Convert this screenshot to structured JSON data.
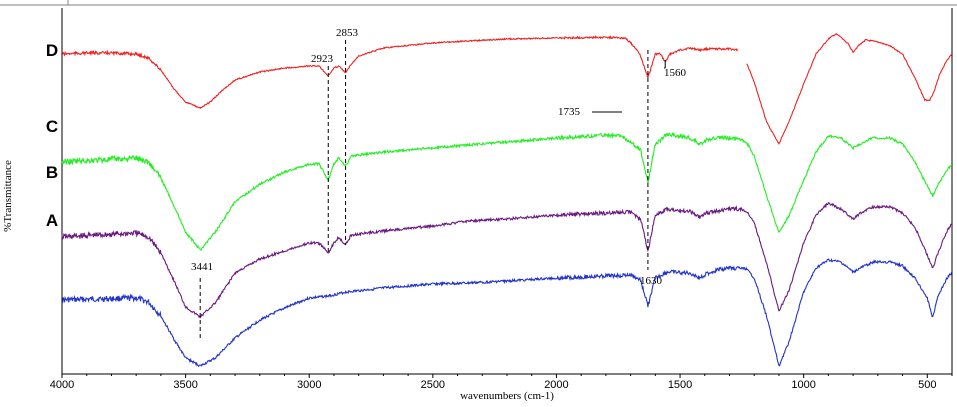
{
  "chart_data": {
    "type": "line",
    "title": "",
    "xlabel": "wavenumbers (cm-1)",
    "ylabel": "%Transmittance",
    "xlim": [
      4000,
      400
    ],
    "x_reversed": true,
    "x_ticks": [
      4000,
      3500,
      3000,
      2500,
      2000,
      1500,
      1000,
      500
    ],
    "y_ticks_shown": false,
    "grid": false,
    "x_gap": [
      1265,
      1232
    ],
    "series": [
      {
        "name": "A",
        "color": "#2233cc",
        "noise": 0.6,
        "points": [
          [
            4000,
            64
          ],
          [
            3850,
            63.5
          ],
          [
            3700,
            63
          ],
          [
            3650,
            65
          ],
          [
            3600,
            72
          ],
          [
            3550,
            83
          ],
          [
            3500,
            93
          ],
          [
            3441,
            97
          ],
          [
            3380,
            93
          ],
          [
            3300,
            83
          ],
          [
            3200,
            74
          ],
          [
            3100,
            68
          ],
          [
            3000,
            63
          ],
          [
            2923,
            62
          ],
          [
            2850,
            60
          ],
          [
            2700,
            58
          ],
          [
            2500,
            56
          ],
          [
            2360,
            55.5
          ],
          [
            2200,
            54.5
          ],
          [
            2000,
            53
          ],
          [
            1800,
            52
          ],
          [
            1700,
            51.5
          ],
          [
            1660,
            54
          ],
          [
            1630,
            67
          ],
          [
            1600,
            53
          ],
          [
            1550,
            50
          ],
          [
            1460,
            50.5
          ],
          [
            1420,
            53
          ],
          [
            1395,
            51
          ],
          [
            1350,
            49
          ],
          [
            1300,
            48
          ],
          [
            1265,
            48
          ],
          [
            1232,
            48.5
          ],
          [
            1200,
            53
          ],
          [
            1150,
            72
          ],
          [
            1100,
            97
          ],
          [
            1060,
            85
          ],
          [
            1000,
            60
          ],
          [
            950,
            48
          ],
          [
            900,
            44
          ],
          [
            850,
            45
          ],
          [
            800,
            50
          ],
          [
            770,
            48
          ],
          [
            720,
            45
          ],
          [
            650,
            45
          ],
          [
            600,
            47
          ],
          [
            550,
            53
          ],
          [
            500,
            63
          ],
          [
            478,
            73
          ],
          [
            460,
            63
          ],
          [
            420,
            53
          ],
          [
            400,
            50
          ]
        ]
      },
      {
        "name": "B",
        "color": "#6a1a80",
        "noise": 0.6,
        "points": [
          [
            4000,
            45
          ],
          [
            3850,
            44
          ],
          [
            3700,
            43
          ],
          [
            3650,
            45
          ],
          [
            3600,
            53
          ],
          [
            3550,
            66
          ],
          [
            3500,
            80
          ],
          [
            3441,
            85
          ],
          [
            3380,
            78
          ],
          [
            3300,
            63
          ],
          [
            3200,
            56
          ],
          [
            3100,
            52
          ],
          [
            3000,
            48
          ],
          [
            2960,
            48
          ],
          [
            2923,
            53
          ],
          [
            2900,
            48
          ],
          [
            2880,
            45
          ],
          [
            2853,
            49
          ],
          [
            2830,
            44
          ],
          [
            2700,
            42
          ],
          [
            2500,
            39.5
          ],
          [
            2360,
            37
          ],
          [
            2200,
            36
          ],
          [
            2000,
            34
          ],
          [
            1800,
            33
          ],
          [
            1700,
            32.5
          ],
          [
            1660,
            36
          ],
          [
            1630,
            52
          ],
          [
            1600,
            34
          ],
          [
            1550,
            31
          ],
          [
            1460,
            32
          ],
          [
            1420,
            35
          ],
          [
            1395,
            33
          ],
          [
            1350,
            32
          ],
          [
            1300,
            31
          ],
          [
            1265,
            31
          ],
          [
            1232,
            32
          ],
          [
            1200,
            38
          ],
          [
            1150,
            58
          ],
          [
            1100,
            82
          ],
          [
            1060,
            72
          ],
          [
            1000,
            48
          ],
          [
            950,
            34
          ],
          [
            900,
            28
          ],
          [
            850,
            31
          ],
          [
            800,
            36
          ],
          [
            770,
            33
          ],
          [
            720,
            30
          ],
          [
            650,
            30
          ],
          [
            600,
            33
          ],
          [
            550,
            40
          ],
          [
            500,
            54
          ],
          [
            478,
            61
          ],
          [
            460,
            54
          ],
          [
            420,
            42
          ],
          [
            400,
            38
          ]
        ]
      },
      {
        "name": "C",
        "color": "#22ee22",
        "noise": 0.6,
        "points": [
          [
            4000,
            33
          ],
          [
            3850,
            32
          ],
          [
            3700,
            31
          ],
          [
            3650,
            33
          ],
          [
            3600,
            41
          ],
          [
            3550,
            54
          ],
          [
            3500,
            68
          ],
          [
            3441,
            77
          ],
          [
            3380,
            68
          ],
          [
            3300,
            53
          ],
          [
            3200,
            44
          ],
          [
            3100,
            38
          ],
          [
            3000,
            34
          ],
          [
            2960,
            34
          ],
          [
            2923,
            42
          ],
          [
            2900,
            34
          ],
          [
            2880,
            31
          ],
          [
            2853,
            35
          ],
          [
            2830,
            30
          ],
          [
            2700,
            28
          ],
          [
            2500,
            26
          ],
          [
            2360,
            24.5
          ],
          [
            2200,
            23
          ],
          [
            2000,
            21
          ],
          [
            1800,
            19.5
          ],
          [
            1735,
            20
          ],
          [
            1700,
            23
          ],
          [
            1660,
            27
          ],
          [
            1630,
            43
          ],
          [
            1600,
            24
          ],
          [
            1550,
            19
          ],
          [
            1460,
            21
          ],
          [
            1420,
            24
          ],
          [
            1395,
            22
          ],
          [
            1350,
            21
          ],
          [
            1300,
            21
          ],
          [
            1265,
            21
          ],
          [
            1232,
            23
          ],
          [
            1200,
            30
          ],
          [
            1150,
            50
          ],
          [
            1100,
            68
          ],
          [
            1060,
            60
          ],
          [
            1000,
            42
          ],
          [
            950,
            28
          ],
          [
            900,
            20
          ],
          [
            850,
            21
          ],
          [
            800,
            26
          ],
          [
            770,
            24
          ],
          [
            720,
            21
          ],
          [
            650,
            21
          ],
          [
            600,
            24
          ],
          [
            550,
            33
          ],
          [
            500,
            45
          ],
          [
            478,
            50
          ],
          [
            460,
            45
          ],
          [
            420,
            37
          ],
          [
            400,
            34
          ]
        ]
      },
      {
        "name": "D",
        "color": "#ee2222",
        "noise": 0.3,
        "points": [
          [
            4000,
            10
          ],
          [
            3900,
            9.5
          ],
          [
            3800,
            9.5
          ],
          [
            3700,
            10
          ],
          [
            3650,
            12
          ],
          [
            3600,
            18
          ],
          [
            3550,
            27
          ],
          [
            3500,
            34
          ],
          [
            3441,
            37
          ],
          [
            3400,
            34
          ],
          [
            3350,
            28
          ],
          [
            3300,
            23
          ],
          [
            3200,
            19
          ],
          [
            3100,
            17
          ],
          [
            3000,
            16
          ],
          [
            2960,
            16
          ],
          [
            2923,
            21
          ],
          [
            2900,
            17
          ],
          [
            2880,
            16
          ],
          [
            2853,
            19.5
          ],
          [
            2830,
            15
          ],
          [
            2800,
            11
          ],
          [
            2700,
            7
          ],
          [
            2500,
            4.5
          ],
          [
            2360,
            3.5
          ],
          [
            2200,
            2.5
          ],
          [
            2000,
            2
          ],
          [
            1800,
            1.6
          ],
          [
            1720,
            2
          ],
          [
            1680,
            7
          ],
          [
            1660,
            11
          ],
          [
            1630,
            22
          ],
          [
            1600,
            10
          ],
          [
            1580,
            10
          ],
          [
            1560,
            14
          ],
          [
            1540,
            10
          ],
          [
            1500,
            8
          ],
          [
            1460,
            7
          ],
          [
            1420,
            8
          ],
          [
            1395,
            7.5
          ],
          [
            1350,
            7.5
          ],
          [
            1300,
            7.5
          ],
          [
            1265,
            8
          ],
          [
            1232,
            14
          ],
          [
            1200,
            24
          ],
          [
            1150,
            44
          ],
          [
            1100,
            55
          ],
          [
            1060,
            44
          ],
          [
            1000,
            25
          ],
          [
            950,
            10
          ],
          [
            900,
            2.5
          ],
          [
            870,
            0
          ],
          [
            850,
            1.5
          ],
          [
            820,
            5
          ],
          [
            800,
            9
          ],
          [
            780,
            6
          ],
          [
            750,
            3
          ],
          [
            700,
            4
          ],
          [
            650,
            6
          ],
          [
            600,
            10
          ],
          [
            550,
            22
          ],
          [
            510,
            33
          ],
          [
            490,
            33
          ],
          [
            470,
            28
          ],
          [
            450,
            20
          ],
          [
            420,
            13
          ],
          [
            400,
            10
          ]
        ]
      }
    ],
    "series_labels": [
      {
        "text": "A",
        "series": "A"
      },
      {
        "text": "B",
        "series": "B"
      },
      {
        "text": "C",
        "series": "C"
      },
      {
        "text": "D",
        "series": "D"
      }
    ],
    "annotations": [
      {
        "text": "3441",
        "x": 3441,
        "line_from": "D",
        "line_to": "A"
      },
      {
        "text": "2923",
        "x": 2923,
        "line_from": "D",
        "line_to": "B"
      },
      {
        "text": "2853",
        "x": 2853,
        "line_from": "D",
        "line_to": "B"
      },
      {
        "text": "1630",
        "x": 1630,
        "line_from": "D",
        "line_to": "A"
      },
      {
        "text": "1735",
        "x": 1735,
        "leader_series": "C"
      },
      {
        "text": "1560",
        "x": 1560,
        "leader_series": "D"
      }
    ]
  }
}
